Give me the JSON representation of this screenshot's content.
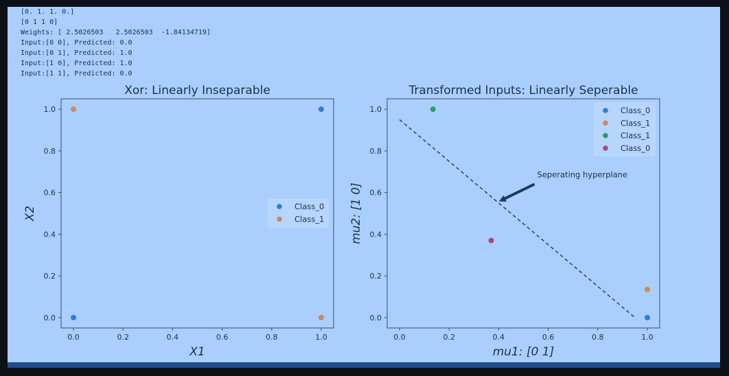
{
  "console_lines": [
    "[0. 1. 1. 0.]",
    "[0 1 1 0]",
    "Weights: [ 2.5026503   2.5026503  -1.84134719]",
    "Input:[0 0], Predicted: 0.0",
    "Input:[0 1], Predicted: 1.0",
    "Input:[1 0], Predicted: 1.0",
    "Input:[1 1], Predicted: 0.0"
  ],
  "colors": {
    "blue": "#2f7fd0",
    "orange": "#c98a5c",
    "green": "#2e9a6e",
    "purple": "#a34e78",
    "text": "#1d2f48",
    "axes_edge": "#3a4d66"
  },
  "chart_data": [
    {
      "type": "scatter",
      "title": "Xor: Linearly Inseparable",
      "xlabel": "X1",
      "ylabel": "X2",
      "xlim": [
        -0.05,
        1.05
      ],
      "ylim": [
        -0.05,
        1.05
      ],
      "xticks": [
        0.0,
        0.2,
        0.4,
        0.6,
        0.8,
        1.0
      ],
      "yticks": [
        0.0,
        0.2,
        0.4,
        0.6,
        0.8,
        1.0
      ],
      "legend_position": "center-right",
      "series": [
        {
          "name": "Class_0",
          "color": "#2f7fd0",
          "points": [
            [
              0,
              0
            ],
            [
              1,
              1
            ]
          ]
        },
        {
          "name": "Class_1",
          "color": "#c98a5c",
          "points": [
            [
              0,
              1
            ],
            [
              1,
              0
            ]
          ]
        }
      ]
    },
    {
      "type": "scatter",
      "title": "Transformed Inputs: Linearly Seperable",
      "xlabel": "mu1: [0 1]",
      "ylabel": "mu2: [1 0]",
      "xlim": [
        -0.05,
        1.05
      ],
      "ylim": [
        -0.05,
        1.05
      ],
      "xticks": [
        0.0,
        0.2,
        0.4,
        0.6,
        0.8,
        1.0
      ],
      "yticks": [
        0.0,
        0.2,
        0.4,
        0.6,
        0.8,
        1.0
      ],
      "legend_position": "top-right",
      "series": [
        {
          "name": "Class_0",
          "color": "#2f7fd0",
          "points": [
            [
              1.0,
              0.0
            ]
          ]
        },
        {
          "name": "Class_1",
          "color": "#c98a5c",
          "points": [
            [
              1.0,
              0.135
            ]
          ]
        },
        {
          "name": "Class_1",
          "color": "#2e9a6e",
          "points": [
            [
              0.135,
              1.0
            ]
          ]
        },
        {
          "name": "Class_0",
          "color": "#a34e78",
          "points": [
            [
              0.37,
              0.37
            ]
          ]
        }
      ],
      "line": {
        "x": [
          0.0,
          0.95
        ],
        "y": [
          0.95,
          0.0
        ],
        "style": "dashed"
      },
      "annotation": {
        "text": "Seperating hyperplane",
        "xy": [
          0.4,
          0.55
        ],
        "xytext": [
          0.55,
          0.66
        ]
      }
    }
  ]
}
